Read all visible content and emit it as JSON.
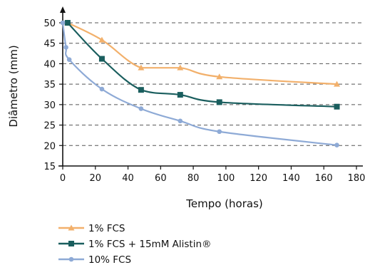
{
  "chart_data": {
    "type": "line",
    "title": "",
    "xlabel": "Tempo (horas)",
    "ylabel": "Diâmetro (mm)",
    "xlim": [
      0,
      180
    ],
    "ylim": [
      15,
      50
    ],
    "x_ticks": [
      0,
      20,
      40,
      60,
      80,
      100,
      120,
      140,
      160,
      180
    ],
    "y_ticks": [
      15,
      20,
      25,
      30,
      35,
      40,
      45,
      50
    ],
    "grid": "horizontal dashed",
    "legend_position": "bottom-left",
    "series": [
      {
        "name": "1% FCS",
        "color": "#f2b06b",
        "marker": "triangle",
        "points": [
          [
            3,
            50
          ],
          [
            24,
            45.8
          ],
          [
            48,
            39
          ],
          [
            72,
            39
          ],
          [
            96,
            36.8
          ],
          [
            168,
            35
          ]
        ]
      },
      {
        "name": "1% FCS + 15mM Alistin®",
        "color": "#1a5e5e",
        "marker": "square",
        "points": [
          [
            3,
            50
          ],
          [
            24,
            41.2
          ],
          [
            48,
            33.6
          ],
          [
            72,
            32.4
          ],
          [
            96,
            30.6
          ],
          [
            168,
            29.5
          ]
        ]
      },
      {
        "name": "10% FCS",
        "color": "#8eaad6",
        "marker": "circle",
        "points": [
          [
            0,
            50
          ],
          [
            2,
            44
          ],
          [
            4,
            41
          ],
          [
            24,
            33.8
          ],
          [
            48,
            29
          ],
          [
            72,
            26
          ],
          [
            96,
            23.4
          ],
          [
            168,
            20.1
          ]
        ]
      }
    ]
  }
}
